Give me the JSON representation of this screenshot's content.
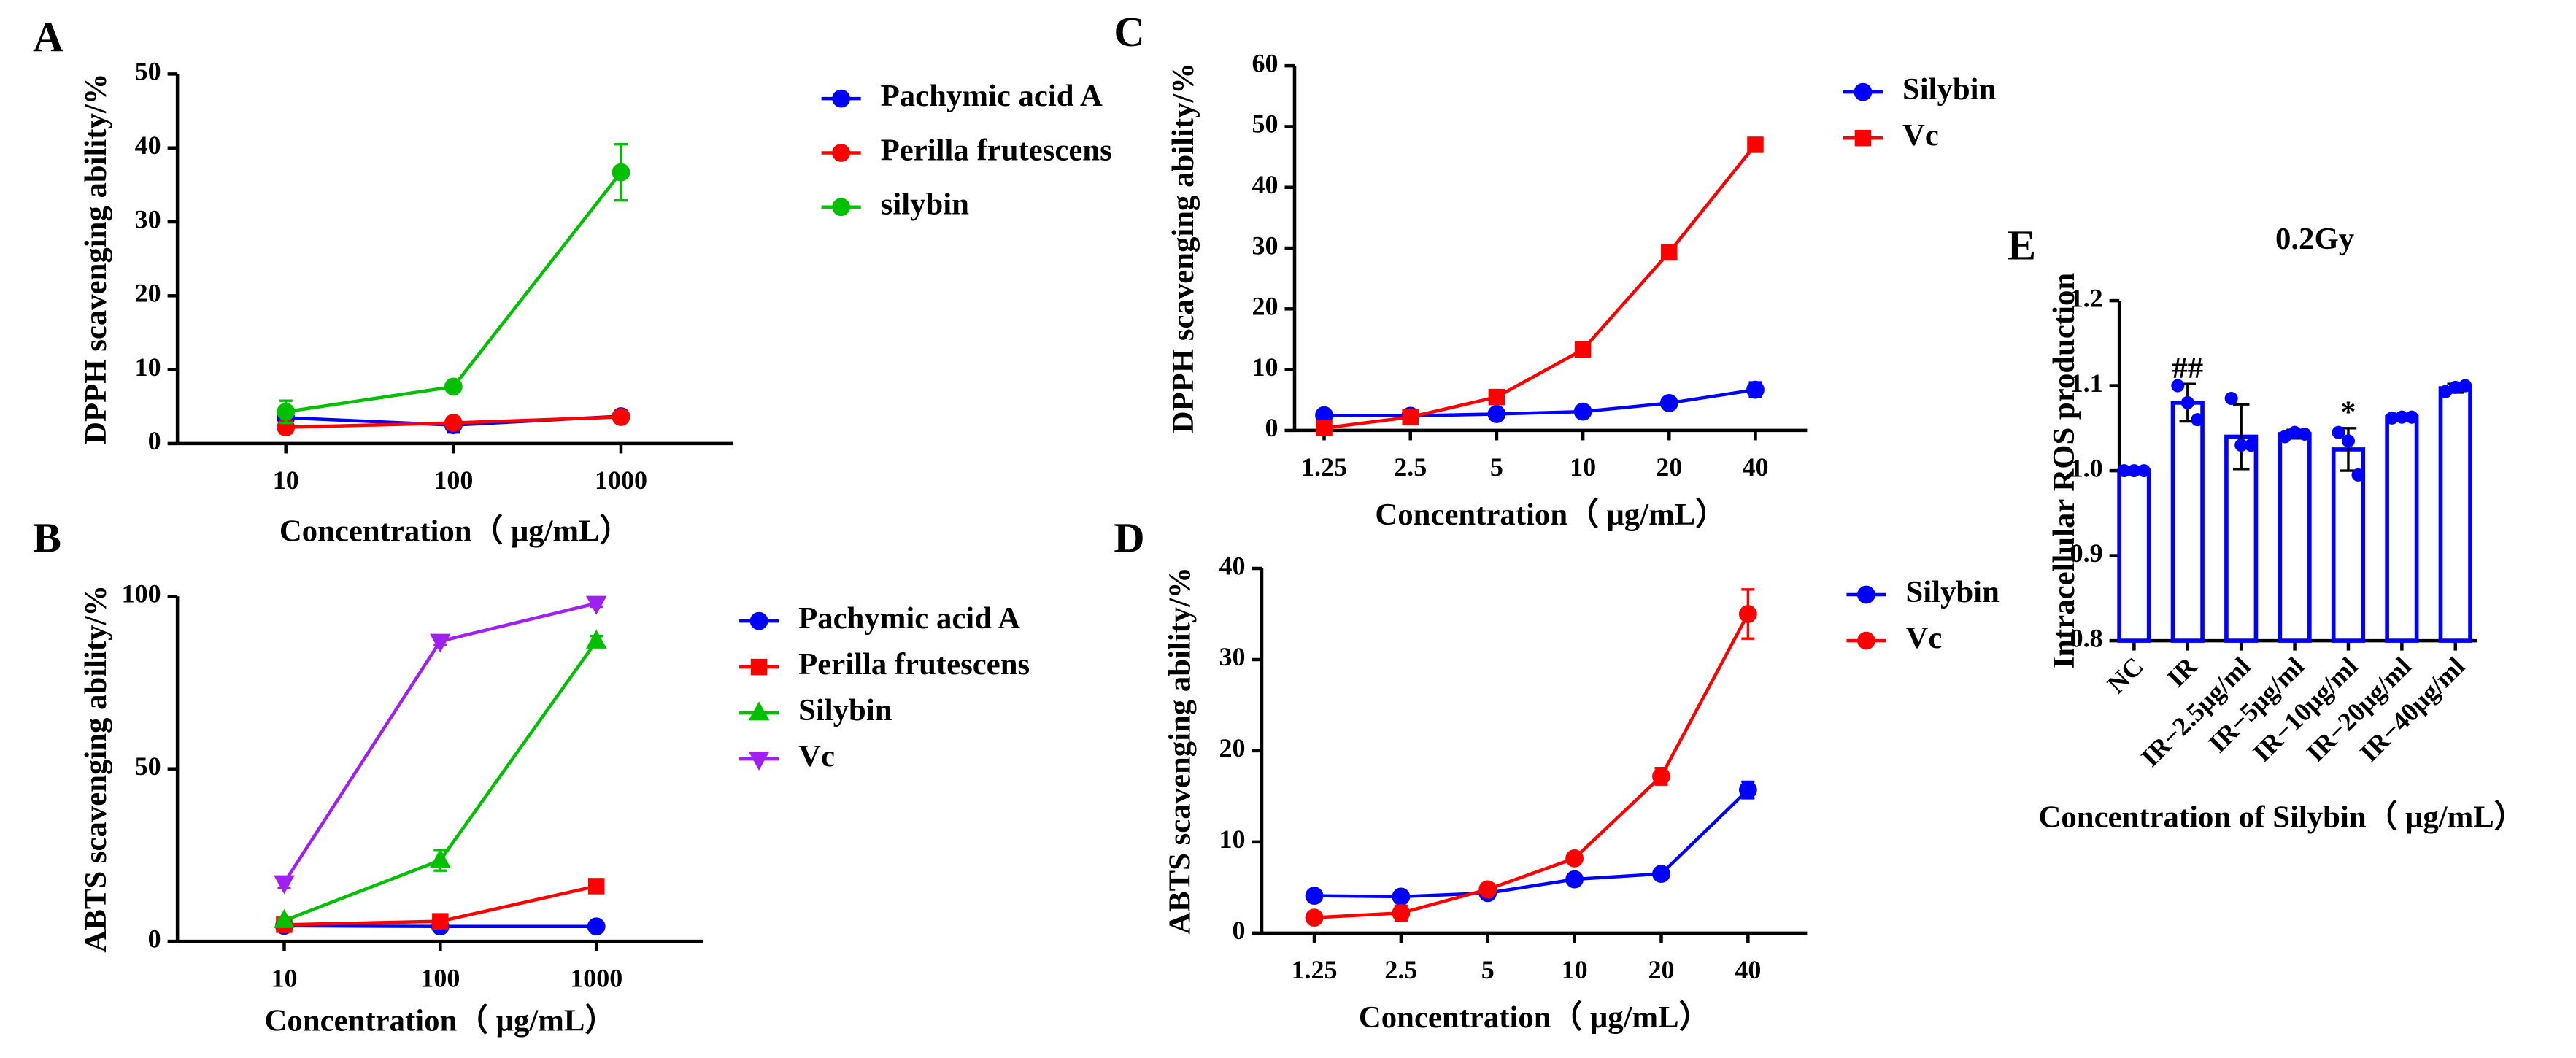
{
  "chart_data": [
    {
      "type": "line",
      "panel": "A",
      "ylabel": "DPPH scavenging ability/%",
      "xlabel": "Concentration（ μg/mL）",
      "categories": [
        "10",
        "100",
        "1000"
      ],
      "ylim": [
        0,
        50
      ],
      "yticks": [
        0,
        10,
        20,
        30,
        40,
        50
      ],
      "series": [
        {
          "name": "Pachymic acid A",
          "color": "#0000ff",
          "marker": "circle",
          "values": [
            3.5,
            2.5,
            3.7
          ],
          "errors": [
            1.5,
            1,
            0.7
          ]
        },
        {
          "name": "Perilla frutescens",
          "color": "#ff0000",
          "marker": "circle",
          "values": [
            2.2,
            2.8,
            3.6
          ],
          "errors": [
            0.8,
            0.8,
            0.5
          ]
        },
        {
          "name": "silybin",
          "color": "#00c000",
          "marker": "circle",
          "values": [
            4.3,
            7.7,
            36.7
          ],
          "errors": [
            1.5,
            0.4,
            3.8
          ]
        }
      ]
    },
    {
      "type": "line",
      "panel": "B",
      "ylabel": "ABTS scavenging ability/%",
      "xlabel": "Concentration（ μg/mL）",
      "categories": [
        "10",
        "100",
        "1000"
      ],
      "ylim": [
        0,
        100
      ],
      "yticks": [
        0,
        50,
        100
      ],
      "series": [
        {
          "name": "Pachymic acid A",
          "color": "#0000ff",
          "marker": "circle",
          "values": [
            4.5,
            4.3,
            4.3
          ],
          "errors": [
            0.5,
            0.5,
            0.5
          ]
        },
        {
          "name": "Perilla frutescens",
          "color": "#ff0000",
          "marker": "square",
          "values": [
            4.8,
            5.8,
            16
          ],
          "errors": [
            0.5,
            0.8,
            1
          ]
        },
        {
          "name": "Silybin",
          "color": "#00c000",
          "marker": "triangle",
          "values": [
            6,
            23.5,
            87
          ],
          "errors": [
            0.5,
            3,
            1.5
          ]
        },
        {
          "name": "Vc",
          "color": "#a020f0",
          "marker": "triangle-down",
          "values": [
            17,
            87,
            98
          ],
          "errors": [
            1.5,
            1,
            1
          ]
        }
      ]
    },
    {
      "type": "line",
      "panel": "C",
      "ylabel": "DPPH scavenging ability/%",
      "xlabel": "Concentration（ μg/mL）",
      "categories": [
        "1.25",
        "2.5",
        "5",
        "10",
        "20",
        "40"
      ],
      "ylim": [
        0,
        60
      ],
      "yticks": [
        0,
        10,
        20,
        30,
        40,
        50,
        60
      ],
      "series": [
        {
          "name": "Silybin",
          "color": "#0000ff",
          "marker": "circle",
          "values": [
            2.5,
            2.4,
            2.7,
            3.1,
            4.5,
            6.7
          ],
          "errors": [
            0.3,
            0.3,
            0.3,
            0.3,
            0.4,
            1.2
          ]
        },
        {
          "name": "Vc",
          "color": "#ff0000",
          "marker": "square",
          "values": [
            0.4,
            2.2,
            5.5,
            13.3,
            29.3,
            47
          ],
          "errors": [
            0.2,
            0.3,
            0.4,
            0.5,
            0.6,
            0.8
          ]
        }
      ]
    },
    {
      "type": "line",
      "panel": "D",
      "ylabel": "ABTS scavenging ability/%",
      "xlabel": "Concentration（ μg/mL）",
      "categories": [
        "1.25",
        "2.5",
        "5",
        "10",
        "20",
        "40"
      ],
      "ylim": [
        0,
        40
      ],
      "yticks": [
        0,
        10,
        20,
        30,
        40
      ],
      "series": [
        {
          "name": "Silybin",
          "color": "#0000ff",
          "marker": "circle",
          "values": [
            4.1,
            4.0,
            4.4,
            5.9,
            6.5,
            15.7
          ],
          "errors": [
            0.3,
            0.3,
            0.3,
            0.3,
            0.3,
            0.9
          ]
        },
        {
          "name": "Vc",
          "color": "#ff0000",
          "marker": "circle",
          "values": [
            1.7,
            2.2,
            4.8,
            8.2,
            17.2,
            35
          ],
          "errors": [
            0.3,
            0.8,
            0.6,
            0.5,
            0.9,
            2.7
          ]
        }
      ]
    },
    {
      "type": "bar",
      "panel": "E",
      "title": "0.2Gy",
      "ylabel": "Intracellular ROS production",
      "xlabel": "Concentration of Silybin（ μg/mL）",
      "categories": [
        "NC",
        "IR",
        "IR−2.5μg/ml",
        "IR−5μg/ml",
        "IR−10μg/ml",
        "IR−20μg/ml",
        "IR−40μg/ml"
      ],
      "ylim": [
        0.8,
        1.2
      ],
      "yticks": [
        0.8,
        0.9,
        {
          "value": 1,
          "label": "1.0"
        },
        1.1,
        1.2
      ],
      "color": "#0000ff",
      "values": [
        1.0,
        1.08,
        1.04,
        1.043,
        1.025,
        1.063,
        1.097
      ],
      "errors": [
        0.002,
        0.022,
        0.038,
        0.005,
        0.025,
        0.003,
        0.005
      ],
      "points": [
        [
          1,
          1,
          1
        ],
        [
          1.1,
          1.08,
          1.06
        ],
        [
          1.085,
          1.03,
          1.03
        ],
        [
          1.04,
          1.045,
          1.043
        ],
        [
          1.045,
          1.035,
          0.995
        ],
        [
          1.062,
          1.063,
          1.063
        ],
        [
          1.093,
          1.098,
          1.1
        ]
      ],
      "annotations": [
        {
          "text": "##",
          "category_index": 1
        },
        {
          "text": "*",
          "category_index": 4
        }
      ]
    }
  ]
}
